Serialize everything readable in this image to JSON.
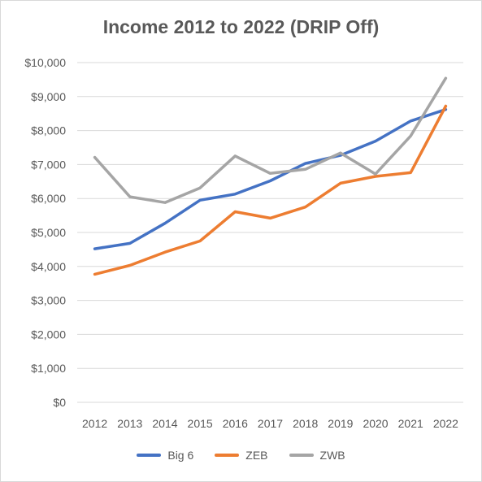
{
  "chart_data": {
    "type": "line",
    "title": "Income 2012 to 2022 (DRIP Off)",
    "categories": [
      "2012",
      "2013",
      "2014",
      "2015",
      "2016",
      "2017",
      "2018",
      "2019",
      "2020",
      "2021",
      "2022"
    ],
    "ylim": [
      0,
      10000
    ],
    "yticks": [
      {
        "value": 0,
        "label": "$0"
      },
      {
        "value": 1000,
        "label": "$1,000"
      },
      {
        "value": 2000,
        "label": "$2,000"
      },
      {
        "value": 3000,
        "label": "$3,000"
      },
      {
        "value": 4000,
        "label": "$4,000"
      },
      {
        "value": 5000,
        "label": "$5,000"
      },
      {
        "value": 6000,
        "label": "$6,000"
      },
      {
        "value": 7000,
        "label": "$7,000"
      },
      {
        "value": 8000,
        "label": "$8,000"
      },
      {
        "value": 9000,
        "label": "$9,000"
      },
      {
        "value": 10000,
        "label": "$10,000"
      }
    ],
    "grid": true,
    "legend_position": "bottom",
    "series": [
      {
        "name": "Big 6",
        "color": "#4472c4",
        "values": [
          4520,
          4680,
          5270,
          5950,
          6130,
          6520,
          7030,
          7270,
          7690,
          8280,
          8620
        ]
      },
      {
        "name": "ZEB",
        "color": "#ed7d31",
        "values": [
          3770,
          4030,
          4420,
          4750,
          5610,
          5420,
          5750,
          6450,
          6650,
          6760,
          8720
        ]
      },
      {
        "name": "ZWB",
        "color": "#a5a5a5",
        "values": [
          7210,
          6050,
          5880,
          6310,
          7250,
          6740,
          6860,
          7340,
          6720,
          7840,
          9540
        ]
      }
    ]
  }
}
